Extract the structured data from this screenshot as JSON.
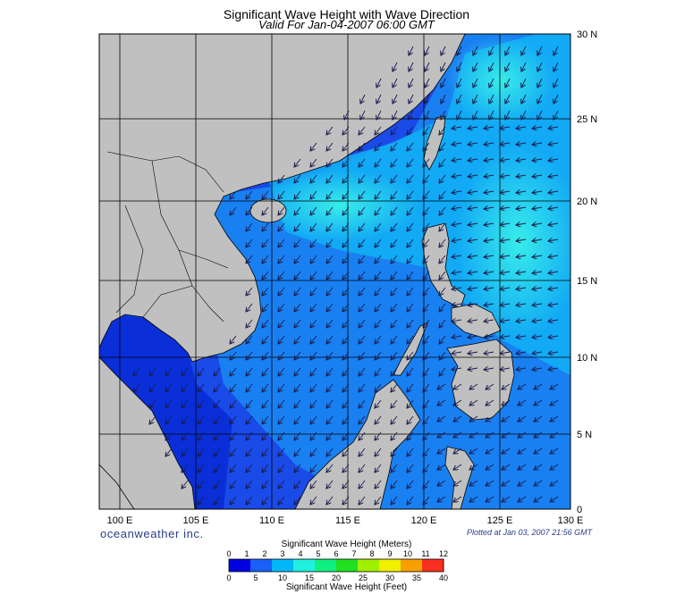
{
  "title": "Significant Wave Height with Wave Direction",
  "subtitle": "Valid For Jan-04-2007 06:00 GMT",
  "brand": "oceanweather inc.",
  "plotted": "Plotted at Jan 03, 2007 21:56 GMT",
  "axes": {
    "lon_labels": [
      "100 E",
      "105 E",
      "110 E",
      "115 E",
      "120 E",
      "125 E",
      "130 E"
    ],
    "lat_labels": [
      "30 N",
      "25 N",
      "20 N",
      "15 N",
      "10 N",
      "5 N",
      "0"
    ],
    "lon_range": [
      99,
      130
    ],
    "lat_range": [
      0,
      30
    ],
    "grid": true
  },
  "colorbar": {
    "title_top": "Significant Wave Height (Meters)",
    "title_bottom": "Significant Wave Height (Feet)",
    "meters": [
      "0",
      "1",
      "2",
      "3",
      "4",
      "5",
      "6",
      "7",
      "8",
      "9",
      "10",
      "11",
      "12"
    ],
    "feet": [
      "0",
      "5",
      "10",
      "15",
      "20",
      "25",
      "30",
      "35",
      "40"
    ],
    "colors": [
      "#0000e0",
      "#1860f8",
      "#00b8f8",
      "#20f0e0",
      "#10f080",
      "#20e020",
      "#a0f000",
      "#f0f000",
      "#f8a000",
      "#f83020"
    ]
  },
  "colors": {
    "land": "#c0c0c0",
    "sea_low": "#1a4ae8",
    "sea_mid": "#1a8cf4",
    "sea_high": "#20e0e8"
  }
}
